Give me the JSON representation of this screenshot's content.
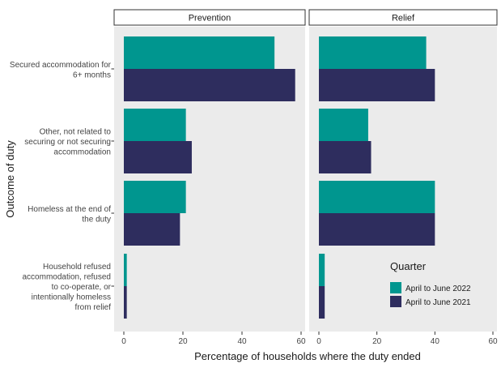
{
  "chart_data": {
    "type": "bar",
    "orientation": "horizontal",
    "facets": [
      "Prevention",
      "Relief"
    ],
    "categories": [
      "Secured accommodation for 6+ months",
      "Other, not related to securing or not securing accommodation",
      "Homeless at the end of the duty",
      "Household refused accommodation, refused to co-operate, or intentionally homeless from relief"
    ],
    "category_lines": [
      [
        "Secured accommodation for",
        "6+ months"
      ],
      [
        "Other, not related to",
        "securing or not securing",
        "accommodation"
      ],
      [
        "Homeless at the end of",
        "the duty"
      ],
      [
        "Household refused",
        "accommodation, refused",
        "to co-operate, or",
        "intentionally homeless",
        "from relief"
      ]
    ],
    "series": [
      {
        "name": "April to June 2022",
        "color": "#00968F",
        "values": {
          "Prevention": [
            51,
            21,
            21,
            1
          ],
          "Relief": [
            37,
            17,
            40,
            2
          ]
        }
      },
      {
        "name": "April to June 2021",
        "color": "#2E2D5E",
        "values": {
          "Prevention": [
            58,
            23,
            19,
            1
          ],
          "Relief": [
            40,
            18,
            40,
            2
          ]
        }
      }
    ],
    "xlabel": "Percentage of households where the duty ended",
    "ylabel": "Outcome of duty",
    "xlim": [
      0,
      60
    ],
    "xticks": [
      0,
      20,
      40,
      60
    ],
    "legend": {
      "title": "Quarter",
      "position": "bottom-right inside"
    },
    "grid": false,
    "background": "#EBEBEB"
  }
}
